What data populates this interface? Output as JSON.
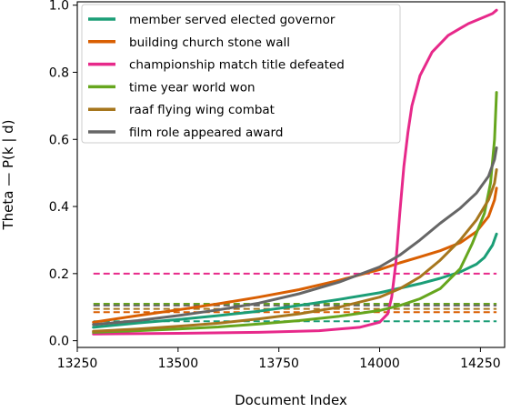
{
  "chart_data": {
    "type": "line",
    "title": "",
    "xlabel": "Document Index",
    "ylabel": "Theta — P(k | d)",
    "xlim": [
      13250,
      14310
    ],
    "ylim": [
      -0.02,
      1.01
    ],
    "xticks": [
      13250,
      13500,
      13750,
      14000,
      14250
    ],
    "xtick_labels": [
      "13250",
      "13500",
      "13750",
      "14000",
      "14250"
    ],
    "yticks": [
      0.0,
      0.2,
      0.4,
      0.6,
      0.8,
      1.0
    ],
    "ytick_labels": [
      "0.0",
      "0.2",
      "0.4",
      "0.6",
      "0.8",
      "1.0"
    ],
    "grid": false,
    "legend_position": "top-left",
    "series": [
      {
        "name": "member served elected governor",
        "color": "#1b9e77",
        "mean": 0.058,
        "points": [
          [
            13290,
            0.04
          ],
          [
            13400,
            0.053
          ],
          [
            13500,
            0.063
          ],
          [
            13600,
            0.075
          ],
          [
            13700,
            0.088
          ],
          [
            13800,
            0.105
          ],
          [
            13900,
            0.123
          ],
          [
            14000,
            0.143
          ],
          [
            14100,
            0.17
          ],
          [
            14150,
            0.186
          ],
          [
            14200,
            0.205
          ],
          [
            14240,
            0.228
          ],
          [
            14260,
            0.248
          ],
          [
            14280,
            0.285
          ],
          [
            14290,
            0.318
          ]
        ]
      },
      {
        "name": "building church stone wall",
        "color": "#d95f02",
        "mean": 0.085,
        "points": [
          [
            13290,
            0.055
          ],
          [
            13400,
            0.075
          ],
          [
            13500,
            0.092
          ],
          [
            13600,
            0.11
          ],
          [
            13700,
            0.13
          ],
          [
            13800,
            0.152
          ],
          [
            13900,
            0.18
          ],
          [
            14000,
            0.212
          ],
          [
            14050,
            0.232
          ],
          [
            14100,
            0.25
          ],
          [
            14150,
            0.268
          ],
          [
            14200,
            0.292
          ],
          [
            14240,
            0.325
          ],
          [
            14270,
            0.37
          ],
          [
            14285,
            0.42
          ],
          [
            14290,
            0.455
          ]
        ]
      },
      {
        "name": "championship match title defeated",
        "color": "#e7298a",
        "mean": 0.2,
        "points": [
          [
            13290,
            0.02
          ],
          [
            13500,
            0.022
          ],
          [
            13700,
            0.025
          ],
          [
            13850,
            0.03
          ],
          [
            13950,
            0.04
          ],
          [
            14000,
            0.055
          ],
          [
            14020,
            0.08
          ],
          [
            14030,
            0.13
          ],
          [
            14040,
            0.23
          ],
          [
            14050,
            0.38
          ],
          [
            14060,
            0.52
          ],
          [
            14070,
            0.62
          ],
          [
            14080,
            0.7
          ],
          [
            14100,
            0.79
          ],
          [
            14130,
            0.86
          ],
          [
            14170,
            0.91
          ],
          [
            14220,
            0.945
          ],
          [
            14260,
            0.965
          ],
          [
            14280,
            0.975
          ],
          [
            14290,
            0.985
          ]
        ]
      },
      {
        "name": "time year world won",
        "color": "#66a61e",
        "mean": 0.11,
        "points": [
          [
            13290,
            0.025
          ],
          [
            13400,
            0.03
          ],
          [
            13500,
            0.035
          ],
          [
            13600,
            0.041
          ],
          [
            13700,
            0.05
          ],
          [
            13800,
            0.06
          ],
          [
            13900,
            0.073
          ],
          [
            14000,
            0.09
          ],
          [
            14050,
            0.105
          ],
          [
            14100,
            0.125
          ],
          [
            14150,
            0.155
          ],
          [
            14200,
            0.215
          ],
          [
            14230,
            0.29
          ],
          [
            14260,
            0.38
          ],
          [
            14275,
            0.47
          ],
          [
            14285,
            0.6
          ],
          [
            14290,
            0.74
          ]
        ]
      },
      {
        "name": "raaf flying wing combat",
        "color": "#a6761d",
        "mean": 0.095,
        "points": [
          [
            13290,
            0.028
          ],
          [
            13400,
            0.035
          ],
          [
            13500,
            0.043
          ],
          [
            13600,
            0.052
          ],
          [
            13700,
            0.065
          ],
          [
            13800,
            0.08
          ],
          [
            13900,
            0.1
          ],
          [
            14000,
            0.13
          ],
          [
            14050,
            0.155
          ],
          [
            14100,
            0.19
          ],
          [
            14150,
            0.24
          ],
          [
            14200,
            0.3
          ],
          [
            14240,
            0.36
          ],
          [
            14270,
            0.42
          ],
          [
            14285,
            0.47
          ],
          [
            14290,
            0.51
          ]
        ]
      },
      {
        "name": "film role appeared award",
        "color": "#666666",
        "mean": 0.105,
        "points": [
          [
            13290,
            0.048
          ],
          [
            13400,
            0.06
          ],
          [
            13500,
            0.075
          ],
          [
            13600,
            0.092
          ],
          [
            13700,
            0.112
          ],
          [
            13800,
            0.14
          ],
          [
            13900,
            0.175
          ],
          [
            14000,
            0.22
          ],
          [
            14050,
            0.255
          ],
          [
            14100,
            0.3
          ],
          [
            14150,
            0.35
          ],
          [
            14200,
            0.395
          ],
          [
            14240,
            0.44
          ],
          [
            14270,
            0.49
          ],
          [
            14285,
            0.54
          ],
          [
            14290,
            0.575
          ]
        ]
      }
    ]
  }
}
